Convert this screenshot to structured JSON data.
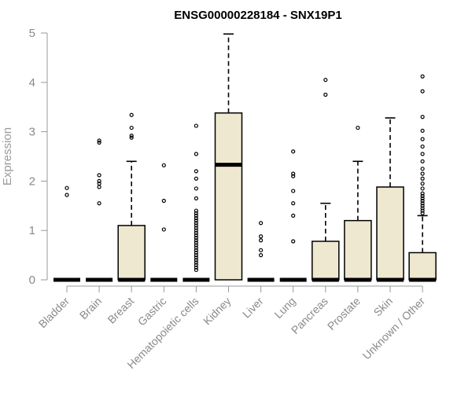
{
  "chart_data": {
    "type": "box",
    "title": "ENSG00000228184 - SNX19P1",
    "xlabel": "",
    "ylabel": "Expression",
    "ylim": [
      0,
      5
    ],
    "yticks": [
      0,
      1,
      2,
      3,
      4,
      5
    ],
    "grid": false,
    "legend": "none",
    "box_color": "#EFE8D0",
    "categories": [
      "Bladder",
      "Brain",
      "Breast",
      "Gastric",
      "Hematopoietic cells",
      "Kidney",
      "Liver",
      "Lung",
      "Pancreas",
      "Prostate",
      "Skin",
      "Unknown / Other"
    ],
    "boxes": [
      {
        "category": "Bladder",
        "q1": 0,
        "median": 0,
        "q3": 0,
        "whisker_low": 0,
        "whisker_high": 0,
        "outliers": [
          1.72,
          1.86
        ]
      },
      {
        "category": "Brain",
        "q1": 0,
        "median": 0,
        "q3": 0,
        "whisker_low": 0,
        "whisker_high": 0,
        "outliers": [
          1.55,
          1.88,
          1.95,
          2.0,
          2.12,
          2.78,
          2.82
        ]
      },
      {
        "category": "Breast",
        "q1": 0,
        "median": 0,
        "q3": 1.1,
        "whisker_low": 0,
        "whisker_high": 2.4,
        "outliers": [
          2.88,
          2.92,
          3.08,
          3.34
        ]
      },
      {
        "category": "Gastric",
        "q1": 0,
        "median": 0,
        "q3": 0,
        "whisker_low": 0,
        "whisker_high": 0,
        "outliers": [
          1.02,
          1.6,
          2.32
        ]
      },
      {
        "category": "Hematopoietic cells",
        "q1": 0,
        "median": 0,
        "q3": 0,
        "whisker_low": 0,
        "whisker_high": 0,
        "outliers": [
          0.2,
          0.25,
          0.3,
          0.35,
          0.4,
          0.45,
          0.5,
          0.55,
          0.6,
          0.65,
          0.7,
          0.75,
          0.8,
          0.85,
          0.9,
          0.95,
          1.0,
          1.05,
          1.1,
          1.15,
          1.2,
          1.25,
          1.3,
          1.35,
          1.4,
          1.65,
          1.85,
          2.05,
          2.2,
          2.55,
          3.12
        ]
      },
      {
        "category": "Kidney",
        "q1": 0,
        "median": 2.33,
        "q3": 3.38,
        "whisker_low": 0,
        "whisker_high": 4.98,
        "outliers": []
      },
      {
        "category": "Liver",
        "q1": 0,
        "median": 0,
        "q3": 0,
        "whisker_low": 0,
        "whisker_high": 0,
        "outliers": [
          0.5,
          0.6,
          0.8,
          0.88,
          1.15
        ]
      },
      {
        "category": "Lung",
        "q1": 0,
        "median": 0,
        "q3": 0,
        "whisker_low": 0,
        "whisker_high": 0,
        "outliers": [
          0.78,
          1.3,
          1.55,
          1.8,
          2.1,
          2.15,
          2.6
        ]
      },
      {
        "category": "Pancreas",
        "q1": 0,
        "median": 0,
        "q3": 0.78,
        "whisker_low": 0,
        "whisker_high": 1.55,
        "outliers": [
          3.75,
          4.05
        ]
      },
      {
        "category": "Prostate",
        "q1": 0,
        "median": 0,
        "q3": 1.2,
        "whisker_low": 0,
        "whisker_high": 2.4,
        "outliers": [
          3.08
        ]
      },
      {
        "category": "Skin",
        "q1": 0,
        "median": 0,
        "q3": 1.88,
        "whisker_low": 0,
        "whisker_high": 3.28,
        "outliers": []
      },
      {
        "category": "Unknown / Other",
        "q1": 0,
        "median": 0,
        "q3": 0.55,
        "whisker_low": 0,
        "whisker_high": 1.3,
        "outliers": [
          1.35,
          1.4,
          1.45,
          1.5,
          1.55,
          1.6,
          1.65,
          1.7,
          1.75,
          1.85,
          1.95,
          2.05,
          2.15,
          2.25,
          2.4,
          2.55,
          2.7,
          2.85,
          3.02,
          3.3,
          3.82,
          4.12
        ]
      }
    ]
  }
}
